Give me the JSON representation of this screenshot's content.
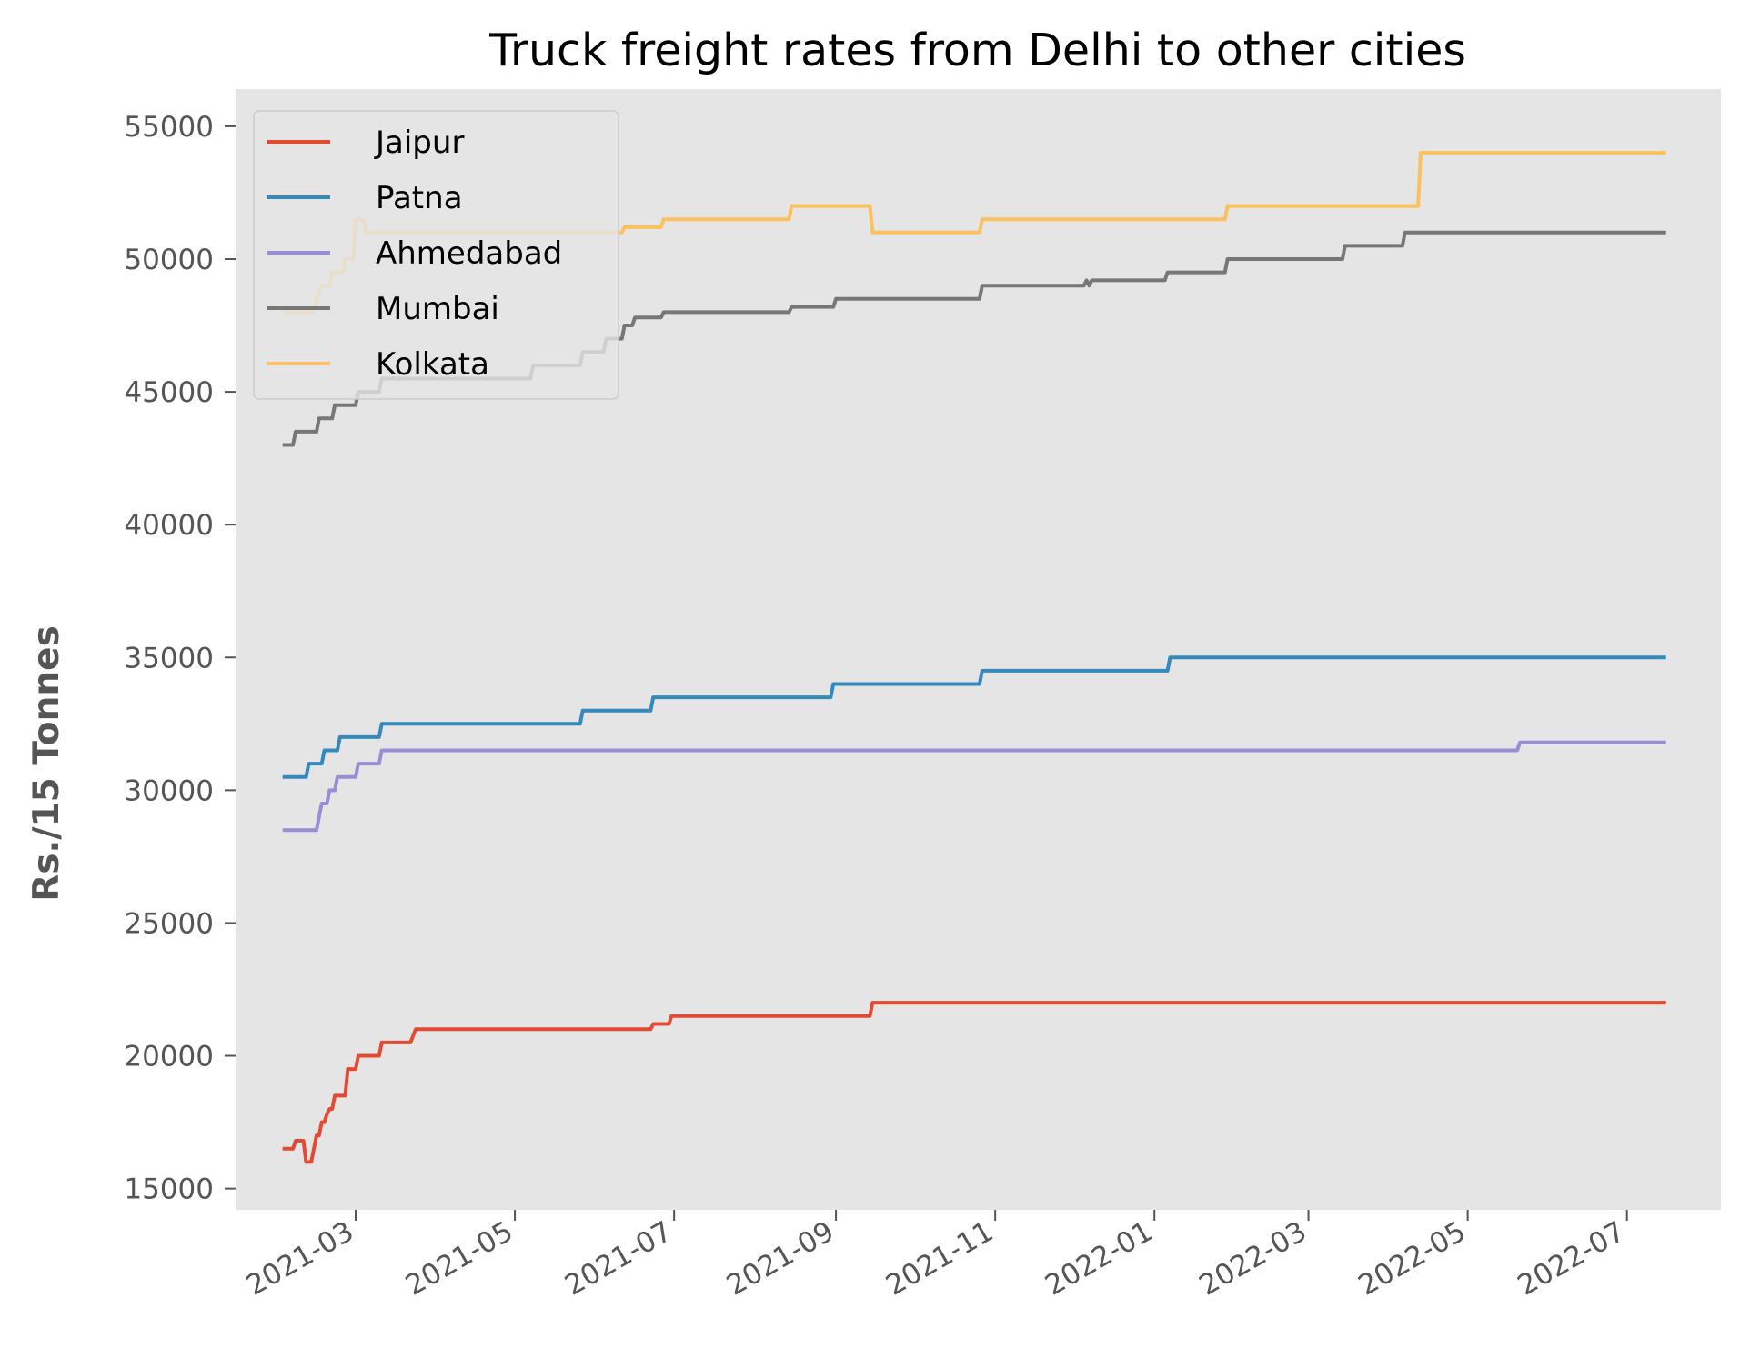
{
  "chart_data": {
    "type": "line",
    "title": "Truck freight rates from Delhi to other cities",
    "xlabel": "",
    "ylabel": "Rs./15 Tonnes",
    "xlim": [
      "2021-01-14",
      "2022-08-06"
    ],
    "ylim": [
      14200,
      56400
    ],
    "x_ticks": [
      "2021-03",
      "2021-05",
      "2021-07",
      "2021-09",
      "2021-11",
      "2022-01",
      "2022-03",
      "2022-05",
      "2022-07"
    ],
    "y_ticks": [
      15000,
      20000,
      25000,
      30000,
      35000,
      40000,
      45000,
      50000,
      55000
    ],
    "y_tick_labels": [
      "15000",
      "20000",
      "25000",
      "30000",
      "35000",
      "40000",
      "45000",
      "50000",
      "55000"
    ],
    "grid": false,
    "background": "#e5e5e5",
    "legend_position": "upper-left",
    "series": [
      {
        "name": "Jaipur",
        "color": "#e24a33",
        "points": [
          [
            "2021-02-01",
            16500
          ],
          [
            "2021-02-05",
            16500
          ],
          [
            "2021-02-06",
            16800
          ],
          [
            "2021-02-09",
            16800
          ],
          [
            "2021-02-10",
            16000
          ],
          [
            "2021-02-12",
            16000
          ],
          [
            "2021-02-13",
            16500
          ],
          [
            "2021-02-14",
            17000
          ],
          [
            "2021-02-15",
            17000
          ],
          [
            "2021-02-16",
            17500
          ],
          [
            "2021-02-17",
            17500
          ],
          [
            "2021-02-18",
            17800
          ],
          [
            "2021-02-19",
            18000
          ],
          [
            "2021-02-20",
            18000
          ],
          [
            "2021-02-21",
            18500
          ],
          [
            "2021-02-25",
            18500
          ],
          [
            "2021-02-26",
            19500
          ],
          [
            "2021-03-01",
            19500
          ],
          [
            "2021-03-02",
            20000
          ],
          [
            "2021-03-10",
            20000
          ],
          [
            "2021-03-11",
            20500
          ],
          [
            "2021-03-22",
            20500
          ],
          [
            "2021-03-24",
            21000
          ],
          [
            "2021-06-22",
            21000
          ],
          [
            "2021-06-23",
            21200
          ],
          [
            "2021-06-29",
            21200
          ],
          [
            "2021-06-30",
            21500
          ],
          [
            "2021-09-14",
            21500
          ],
          [
            "2021-09-15",
            22000
          ],
          [
            "2022-07-16",
            22000
          ]
        ]
      },
      {
        "name": "Patna",
        "color": "#348abd",
        "points": [
          [
            "2021-02-01",
            30500
          ],
          [
            "2021-02-10",
            30500
          ],
          [
            "2021-02-11",
            31000
          ],
          [
            "2021-02-16",
            31000
          ],
          [
            "2021-02-17",
            31500
          ],
          [
            "2021-02-22",
            31500
          ],
          [
            "2021-02-23",
            32000
          ],
          [
            "2021-03-10",
            32000
          ],
          [
            "2021-03-11",
            32500
          ],
          [
            "2021-05-26",
            32500
          ],
          [
            "2021-05-27",
            33000
          ],
          [
            "2021-06-22",
            33000
          ],
          [
            "2021-06-23",
            33500
          ],
          [
            "2021-08-30",
            33500
          ],
          [
            "2021-08-31",
            34000
          ],
          [
            "2021-10-26",
            34000
          ],
          [
            "2021-10-27",
            34500
          ],
          [
            "2022-01-06",
            34500
          ],
          [
            "2022-01-07",
            35000
          ],
          [
            "2022-07-16",
            35000
          ]
        ]
      },
      {
        "name": "Ahmedabad",
        "color": "#988ed5",
        "points": [
          [
            "2021-02-01",
            28500
          ],
          [
            "2021-02-14",
            28500
          ],
          [
            "2021-02-15",
            29000
          ],
          [
            "2021-02-16",
            29500
          ],
          [
            "2021-02-18",
            29500
          ],
          [
            "2021-02-19",
            30000
          ],
          [
            "2021-02-21",
            30000
          ],
          [
            "2021-02-22",
            30500
          ],
          [
            "2021-03-01",
            30500
          ],
          [
            "2021-03-02",
            31000
          ],
          [
            "2021-03-10",
            31000
          ],
          [
            "2021-03-11",
            31500
          ],
          [
            "2022-05-20",
            31500
          ],
          [
            "2022-05-21",
            31800
          ],
          [
            "2022-07-16",
            31800
          ]
        ]
      },
      {
        "name": "Mumbai",
        "color": "#777777",
        "points": [
          [
            "2021-02-01",
            43000
          ],
          [
            "2021-02-05",
            43000
          ],
          [
            "2021-02-06",
            43500
          ],
          [
            "2021-02-14",
            43500
          ],
          [
            "2021-02-15",
            44000
          ],
          [
            "2021-02-20",
            44000
          ],
          [
            "2021-02-21",
            44500
          ],
          [
            "2021-03-01",
            44500
          ],
          [
            "2021-03-02",
            45000
          ],
          [
            "2021-03-10",
            45000
          ],
          [
            "2021-03-11",
            45500
          ],
          [
            "2021-05-07",
            45500
          ],
          [
            "2021-05-08",
            46000
          ],
          [
            "2021-05-26",
            46000
          ],
          [
            "2021-05-27",
            46500
          ],
          [
            "2021-06-04",
            46500
          ],
          [
            "2021-06-05",
            47000
          ],
          [
            "2021-06-11",
            47000
          ],
          [
            "2021-06-12",
            47500
          ],
          [
            "2021-06-15",
            47500
          ],
          [
            "2021-06-16",
            47800
          ],
          [
            "2021-06-26",
            47800
          ],
          [
            "2021-06-27",
            48000
          ],
          [
            "2021-08-14",
            48000
          ],
          [
            "2021-08-15",
            48200
          ],
          [
            "2021-08-31",
            48200
          ],
          [
            "2021-09-01",
            48500
          ],
          [
            "2021-10-26",
            48500
          ],
          [
            "2021-10-27",
            49000
          ],
          [
            "2021-12-05",
            49000
          ],
          [
            "2021-12-06",
            49200
          ],
          [
            "2021-12-07",
            49000
          ],
          [
            "2021-12-08",
            49200
          ],
          [
            "2022-01-05",
            49200
          ],
          [
            "2022-01-06",
            49500
          ],
          [
            "2022-01-28",
            49500
          ],
          [
            "2022-01-29",
            50000
          ],
          [
            "2022-03-14",
            50000
          ],
          [
            "2022-03-15",
            50500
          ],
          [
            "2022-04-06",
            50500
          ],
          [
            "2022-04-07",
            51000
          ],
          [
            "2022-07-16",
            51000
          ]
        ]
      },
      {
        "name": "Kolkata",
        "color": "#fbc15e",
        "points": [
          [
            "2021-02-01",
            48000
          ],
          [
            "2021-02-13",
            48000
          ],
          [
            "2021-02-14",
            48500
          ],
          [
            "2021-02-16",
            49000
          ],
          [
            "2021-02-19",
            49000
          ],
          [
            "2021-02-20",
            49500
          ],
          [
            "2021-02-24",
            49500
          ],
          [
            "2021-02-25",
            50000
          ],
          [
            "2021-02-28",
            50000
          ],
          [
            "2021-03-01",
            51500
          ],
          [
            "2021-03-04",
            51500
          ],
          [
            "2021-03-05",
            51000
          ],
          [
            "2021-06-11",
            51000
          ],
          [
            "2021-06-12",
            51200
          ],
          [
            "2021-06-26",
            51200
          ],
          [
            "2021-06-27",
            51500
          ],
          [
            "2021-08-14",
            51500
          ],
          [
            "2021-08-15",
            52000
          ],
          [
            "2021-09-14",
            52000
          ],
          [
            "2021-09-15",
            51000
          ],
          [
            "2021-10-26",
            51000
          ],
          [
            "2021-10-27",
            51500
          ],
          [
            "2022-01-28",
            51500
          ],
          [
            "2022-01-29",
            52000
          ],
          [
            "2022-04-12",
            52000
          ],
          [
            "2022-04-13",
            54000
          ],
          [
            "2022-07-16",
            54000
          ]
        ]
      }
    ]
  }
}
